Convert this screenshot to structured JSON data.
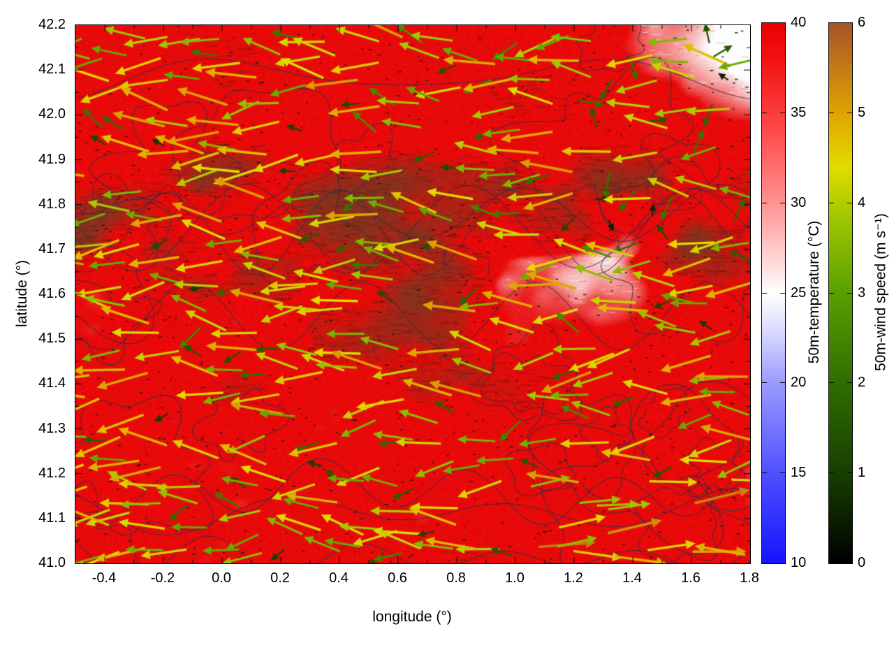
{
  "chart_data": {
    "type": "heatmap",
    "title": "",
    "xlabel": "longitude (°)",
    "ylabel": "latitude (°)",
    "xlim": [
      -0.5,
      1.8
    ],
    "ylim": [
      41.0,
      42.2
    ],
    "grid": false,
    "legend": false,
    "background_color": "#ffffff",
    "x_tick_values": [
      -0.4,
      -0.2,
      0.0,
      0.2,
      0.4,
      0.6,
      0.8,
      1.0,
      1.2,
      1.4,
      1.6,
      1.8
    ],
    "x_tick_labels": [
      "-0.4",
      "-0.2",
      "0.0",
      "0.2",
      "0.4",
      "0.6",
      "0.8",
      "1.0",
      "1.2",
      "1.4",
      "1.6",
      "1.8"
    ],
    "y_tick_values": [
      41.0,
      41.1,
      41.2,
      41.3,
      41.4,
      41.5,
      41.6,
      41.7,
      41.8,
      41.9,
      42.0,
      42.1,
      42.2
    ],
    "y_tick_labels": [
      "41.0",
      "41.1",
      "41.2",
      "41.3",
      "41.4",
      "41.5",
      "41.6",
      "41.7",
      "41.8",
      "41.9",
      "42.0",
      "42.1",
      "42.2"
    ],
    "colorbars": [
      {
        "id": "temperature",
        "title": "50m-temperature (°C)",
        "min": 10,
        "max": 40,
        "tick_values": [
          40,
          35,
          30,
          25,
          20,
          15,
          10
        ],
        "tick_labels": [
          "40",
          "35",
          "30",
          "25",
          "20",
          "15",
          "10"
        ],
        "gradient_stops": [
          {
            "v": 10,
            "c": "#1414ff"
          },
          {
            "v": 15,
            "c": "#5050ff"
          },
          {
            "v": 20,
            "c": "#9a9aff"
          },
          {
            "v": 23,
            "c": "#dcdcff"
          },
          {
            "v": 25,
            "c": "#ffffff"
          },
          {
            "v": 27,
            "c": "#ffd2d2"
          },
          {
            "v": 30,
            "c": "#ff9292"
          },
          {
            "v": 34,
            "c": "#ff4a4a"
          },
          {
            "v": 38,
            "c": "#f21212"
          },
          {
            "v": 40,
            "c": "#e80000"
          }
        ]
      },
      {
        "id": "wind-speed",
        "title": "50m-wind speed (m s⁻¹)",
        "min": 0,
        "max": 6,
        "tick_values": [
          6,
          5,
          4,
          3,
          2,
          1,
          0
        ],
        "tick_labels": [
          "6",
          "5",
          "4",
          "3",
          "2",
          "1",
          "0"
        ],
        "gradient_stops": [
          {
            "v": 0,
            "c": "#000000"
          },
          {
            "v": 1,
            "c": "#173f00"
          },
          {
            "v": 2,
            "c": "#2f6d00"
          },
          {
            "v": 3,
            "c": "#58a000"
          },
          {
            "v": 3.8,
            "c": "#9cc400"
          },
          {
            "v": 4.4,
            "c": "#e2dc00"
          },
          {
            "v": 5,
            "c": "#e0a400"
          },
          {
            "v": 6,
            "c": "#a8522a"
          }
        ]
      }
    ],
    "overlays": {
      "temperature_field": "Filled 50 m temperature field, predominantly saturated red (≈37–40 °C), with pale pink/white patches (≈25–30 °C) in the top-right corner, centre-right near (1.2–1.5°E, 41.35–41.6°N) and near (0.45°E, 41.05–41.15°N); darker red-brown streaky textured bands across the centre and centre-left (lat ≈41.2–41.9°N).",
      "contours": "Thin dark grey meandering contour lines drawn over the whole map.",
      "wind_vectors": "Arrows at grid points coloured by 50 m wind speed on the black→green→yellow→orange palette; most arrows point westward (leftward) with lengths proportional to speed ≈1–5 m s⁻¹; bottom-right arrows point eastward; top-right region has short dark-green/black arrows in mixed directions; dense tiny dark vectors form the brownish streak texture."
    }
  }
}
